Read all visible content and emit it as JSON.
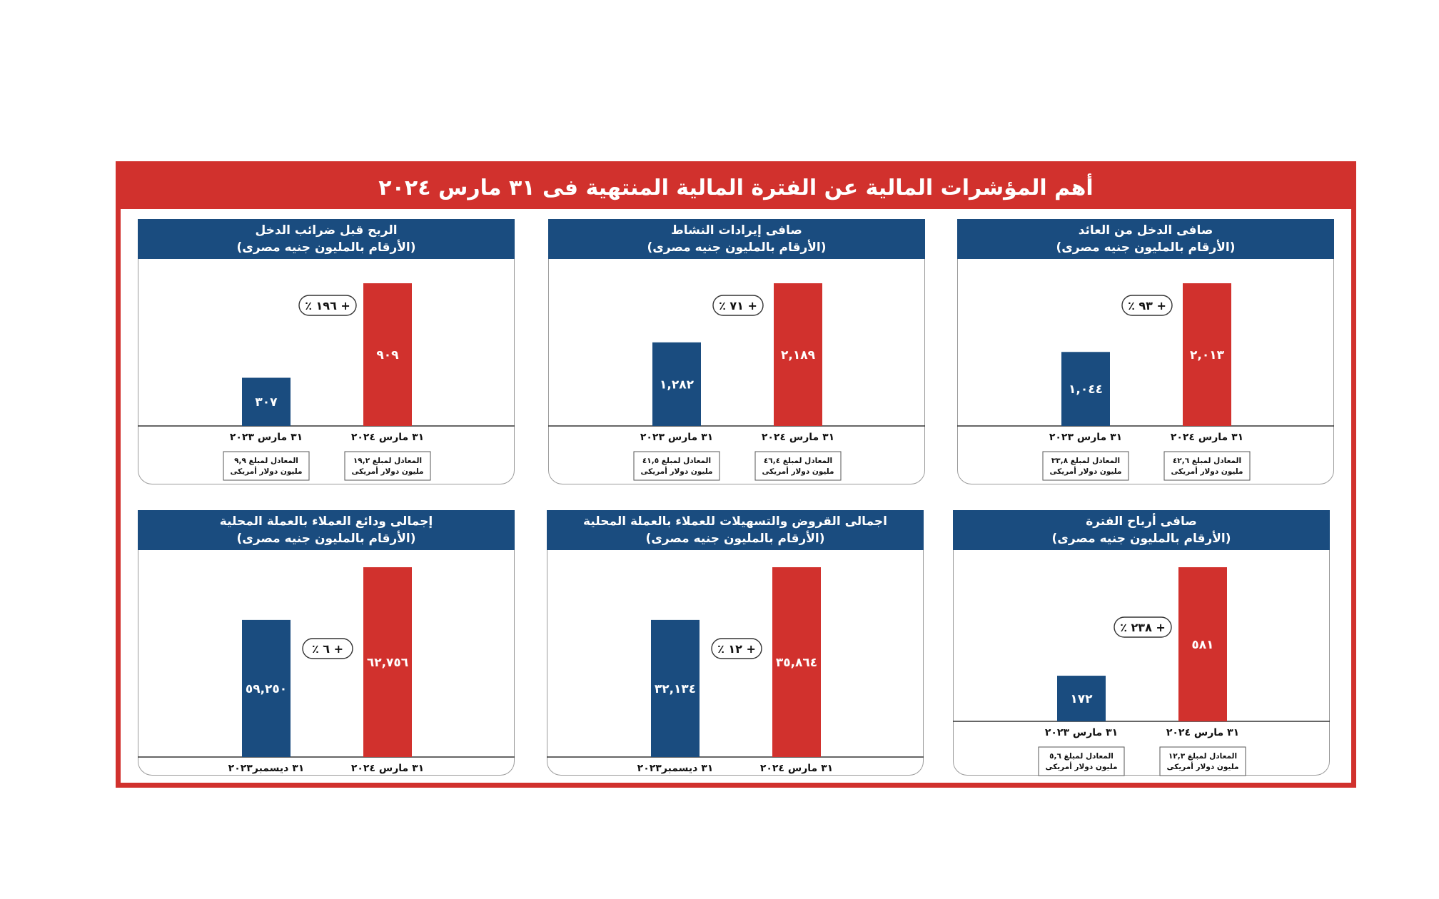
{
  "page": {
    "title": "أهم المؤشرات المالية عن الفترة المالية المنتهية فى ٣١ مارس ٢٠٢٤",
    "colors": {
      "frame": "#d1312d",
      "header": "#1a4c7f",
      "bar_prev": "#1a4c7f",
      "bar_curr": "#d1312d"
    }
  },
  "panels": [
    {
      "title": "صافى الدخل من العائد",
      "subtitle": "(الأرقام بالمليون جنيه مصرى)",
      "categories": [
        "٣١ مارس ٢٠٢٣",
        "٣١ مارس ٢٠٢٤"
      ],
      "value_labels": [
        "١,٠٤٤",
        "٢,٠١٣"
      ],
      "change_label": "+ ٩٣ ٪",
      "usd_labels": [
        [
          "المعادل لمبلغ ٣٣,٨",
          "مليون دولار أمريكى"
        ],
        [
          "المعادل لمبلغ ٤٢,٦",
          "مليون دولار أمريكى"
        ]
      ]
    },
    {
      "title": "صافى إيرادات النشاط",
      "subtitle": "(الأرقام بالمليون جنيه مصرى)",
      "categories": [
        "٣١ مارس ٢٠٢٣",
        "٣١ مارس ٢٠٢٤"
      ],
      "value_labels": [
        "١,٢٨٢",
        "٢,١٨٩"
      ],
      "change_label": "+ ٧١ ٪",
      "usd_labels": [
        [
          "المعادل لمبلغ ٤١,٥",
          "مليون دولار أمريكى"
        ],
        [
          "المعادل لمبلغ ٤٦,٤",
          "مليون دولار أمريكى"
        ]
      ]
    },
    {
      "title": "الربح قبل ضرائب الدخل",
      "subtitle": "(الأرقام بالمليون جنيه مصرى)",
      "categories": [
        "٣١ مارس ٢٠٢٣",
        "٣١ مارس ٢٠٢٤"
      ],
      "value_labels": [
        "٣٠٧",
        "٩٠٩"
      ],
      "change_label": "+ ١٩٦ ٪",
      "usd_labels": [
        [
          "المعادل لمبلغ ٩,٩",
          "مليون دولار أمريكى"
        ],
        [
          "المعادل لمبلغ ١٩,٢",
          "مليون دولار أمريكى"
        ]
      ]
    },
    {
      "title": "صافى أرباح الفترة",
      "subtitle": "(الأرقام بالمليون جنيه مصرى)",
      "categories": [
        "٣١ مارس ٢٠٢٣",
        "٣١ مارس ٢٠٢٤"
      ],
      "value_labels": [
        "١٧٢",
        "٥٨١"
      ],
      "change_label": "+ ٢٣٨ ٪",
      "usd_labels": [
        [
          "المعادل لمبلغ ٥,٦",
          "مليون دولار أمريكى"
        ],
        [
          "المعادل لمبلغ ١٢,٣",
          "مليون دولار أمريكى"
        ]
      ]
    },
    {
      "title": "اجمالى القروض والتسهيلات للعملاء بالعملة المحلية",
      "subtitle": "(الأرقام بالمليون جنيه مصرى)",
      "categories": [
        "٣١ ديسمبر٢٠٢٣",
        "٣١ مارس ٢٠٢٤"
      ],
      "value_labels": [
        "٣٢,١٣٤",
        "٣٥,٨٦٤"
      ],
      "change_label": "+ ١٢ ٪",
      "usd_labels": []
    },
    {
      "title": "إجمالى ودائع العملاء بالعملة المحلية",
      "subtitle": "(الأرقام بالمليون جنيه مصرى)",
      "categories": [
        "٣١ ديسمبر٢٠٢٣",
        "٣١ مارس ٢٠٢٤"
      ],
      "value_labels": [
        "٥٩,٢٥٠",
        "٦٢,٧٥٦"
      ],
      "change_label": "+ ٦ ٪",
      "usd_labels": []
    }
  ],
  "chart_data": [
    {
      "type": "bar",
      "title": "صافى الدخل من العائد",
      "ylabel": "(الأرقام بالمليون جنيه مصرى)",
      "categories": [
        "٣١ مارس ٢٠٢٣",
        "٣١ مارس ٢٠٢٤"
      ],
      "values": [
        1044,
        2013
      ],
      "change_pct": 93
    },
    {
      "type": "bar",
      "title": "صافى إيرادات النشاط",
      "ylabel": "(الأرقام بالمليون جنيه مصرى)",
      "categories": [
        "٣١ مارس ٢٠٢٣",
        "٣١ مارس ٢٠٢٤"
      ],
      "values": [
        1282,
        2189
      ],
      "change_pct": 71
    },
    {
      "type": "bar",
      "title": "الربح قبل ضرائب الدخل",
      "ylabel": "(الأرقام بالمليون جنيه مصرى)",
      "categories": [
        "٣١ مارس ٢٠٢٣",
        "٣١ مارس ٢٠٢٤"
      ],
      "values": [
        307,
        909
      ],
      "change_pct": 196
    },
    {
      "type": "bar",
      "title": "صافى أرباح الفترة",
      "ylabel": "(الأرقام بالمليون جنيه مصرى)",
      "categories": [
        "٣١ مارس ٢٠٢٣",
        "٣١ مارس ٢٠٢٤"
      ],
      "values": [
        172,
        581
      ],
      "change_pct": 238
    },
    {
      "type": "bar",
      "title": "اجمالى القروض والتسهيلات للعملاء بالعملة المحلية",
      "ylabel": "(الأرقام بالمليون جنيه مصرى)",
      "categories": [
        "٣١ ديسمبر٢٠٢٣",
        "٣١ مارس ٢٠٢٤"
      ],
      "values": [
        32134,
        35864
      ],
      "change_pct": 12
    },
    {
      "type": "bar",
      "title": "إجمالى ودائع العملاء بالعملة المحلية",
      "ylabel": "(الأرقام بالمليون جنيه مصرى)",
      "categories": [
        "٣١ ديسمبر٢٠٢٣",
        "٣١ مارس ٢٠٢٤"
      ],
      "values": [
        59250,
        62756
      ],
      "change_pct": 6
    }
  ]
}
